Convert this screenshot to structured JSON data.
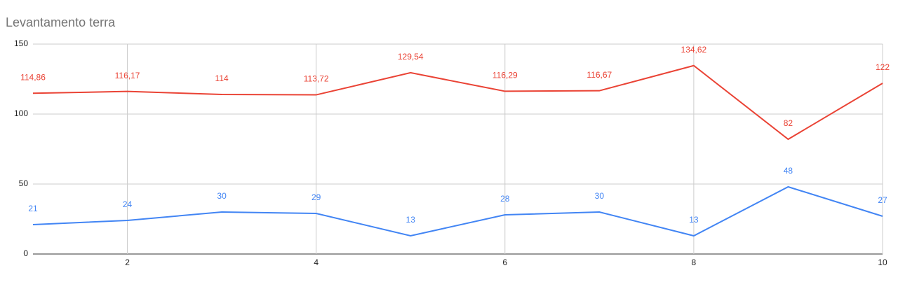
{
  "chart_data": {
    "type": "line",
    "title": "Levantamento terra",
    "x": [
      1,
      2,
      3,
      4,
      5,
      6,
      7,
      8,
      9,
      10
    ],
    "xlim": [
      1,
      10
    ],
    "xticks": [
      2,
      4,
      6,
      8,
      10
    ],
    "ylim": [
      0,
      150
    ],
    "yticks": [
      0,
      50,
      100,
      150
    ],
    "grid": true,
    "series": [
      {
        "color": "#ea4335",
        "values": [
          114.86,
          116.17,
          114,
          113.72,
          129.54,
          116.29,
          116.67,
          134.62,
          82,
          122
        ],
        "value_labels": [
          "114,86",
          "116,17",
          "114",
          "113,72",
          "129,54",
          "116,29",
          "116,67",
          "134,62",
          "82",
          "122"
        ]
      },
      {
        "color": "#4285f4",
        "values": [
          21,
          24,
          30,
          29,
          13,
          28,
          30,
          13,
          48,
          27
        ]
      }
    ]
  }
}
